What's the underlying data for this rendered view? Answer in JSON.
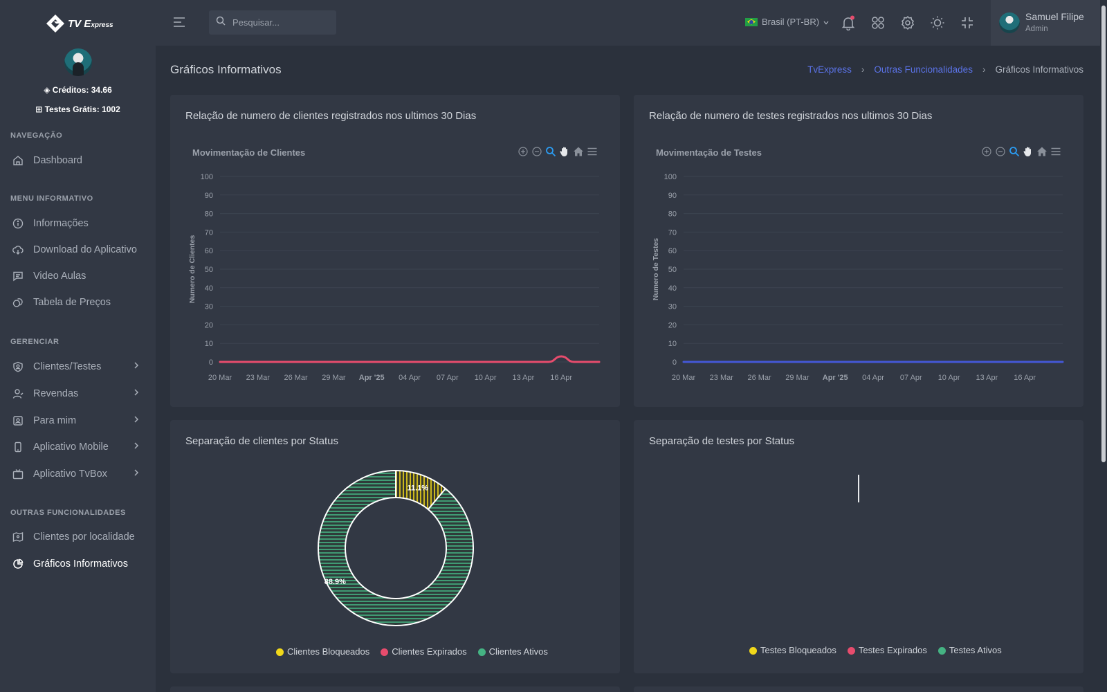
{
  "brand": {
    "logo_main": "TV E",
    "logo_small": "xpress"
  },
  "sidebar": {
    "credits": "Créditos: 34.66",
    "trials": "Testes Grátis: 1002",
    "sections": [
      {
        "header": "NAVEGAÇÃO"
      },
      {
        "header": "MENU INFORMATIVO"
      },
      {
        "header": "GERENCIAR"
      },
      {
        "header": "OUTRAS FUNCIONALIDADES"
      }
    ],
    "items": [
      {
        "label": "Dashboard",
        "icon": "home-icon"
      },
      {
        "label": "Informações",
        "icon": "info-icon"
      },
      {
        "label": "Download do Aplicativo",
        "icon": "download-cloud-icon"
      },
      {
        "label": "Video Aulas",
        "icon": "message-icon"
      },
      {
        "label": "Tabela de Preços",
        "icon": "coins-icon"
      },
      {
        "label": "Clientes/Testes",
        "icon": "shield-user-icon"
      },
      {
        "label": "Revendas",
        "icon": "user-icon"
      },
      {
        "label": "Para mim",
        "icon": "contact-icon"
      },
      {
        "label": "Aplicativo Mobile",
        "icon": "smartphone-icon"
      },
      {
        "label": "Aplicativo TvBox",
        "icon": "tv-icon"
      },
      {
        "label": "Clientes por localidade",
        "icon": "map-icon"
      },
      {
        "label": "Gráficos Informativos",
        "icon": "pie-chart-icon"
      }
    ]
  },
  "topbar": {
    "search_placeholder": "Pesquisar...",
    "language": "Brasil (PT-BR)",
    "user_name": "Samuel Filipe",
    "user_role": "Admin"
  },
  "page": {
    "title": "Gráficos Informativos",
    "breadcrumb": [
      "TvExpress",
      "Outras Funcionalidades",
      "Gráficos Informativos"
    ]
  },
  "cards": {
    "clients_line_title": "Relação de numero de clientes registrados nos ultimos 30 Dias",
    "tests_line_title": "Relação de numero de testes registrados nos ultimos 30 Dias",
    "clients_donut_title": "Separação de clientes por Status",
    "tests_donut_title": "Separação de testes por Status"
  },
  "colors": {
    "accent": "#5b73e8",
    "pink": "#e74c6d",
    "blue": "#4458d6",
    "yellow": "#f1d81a",
    "green": "#45b383",
    "card": "#323844",
    "background": "#2b313c"
  },
  "chart_data": [
    {
      "type": "line",
      "title": "Movimentação de Clientes",
      "ylabel": "Numero de Clientes",
      "ylim": [
        0,
        100
      ],
      "yticks": [
        0,
        10,
        20,
        30,
        40,
        50,
        60,
        70,
        80,
        90,
        100
      ],
      "xticks": [
        "20 Mar",
        "23 Mar",
        "26 Mar",
        "29 Mar",
        "Apr '25",
        "04 Apr",
        "07 Apr",
        "10 Apr",
        "13 Apr",
        "16 Apr"
      ],
      "x": [
        "20 Mar",
        "21 Mar",
        "22 Mar",
        "23 Mar",
        "24 Mar",
        "25 Mar",
        "26 Mar",
        "27 Mar",
        "28 Mar",
        "29 Mar",
        "30 Mar",
        "31 Mar",
        "01 Apr",
        "02 Apr",
        "03 Apr",
        "04 Apr",
        "05 Apr",
        "06 Apr",
        "07 Apr",
        "08 Apr",
        "09 Apr",
        "10 Apr",
        "11 Apr",
        "12 Apr",
        "13 Apr",
        "14 Apr",
        "15 Apr",
        "16 Apr",
        "17 Apr",
        "18 Apr",
        "19 Apr"
      ],
      "series": [
        {
          "color": "#e74c6d",
          "values": [
            0,
            0,
            0,
            0,
            0,
            0,
            0,
            0,
            0,
            0,
            0,
            0,
            0,
            0,
            0,
            0,
            0,
            0,
            0,
            0,
            0,
            0,
            0,
            0,
            0,
            0,
            0,
            3,
            0,
            0,
            0
          ]
        }
      ],
      "grid": true
    },
    {
      "type": "line",
      "title": "Movimentação de Testes",
      "ylabel": "Numero de Testes",
      "ylim": [
        0,
        100
      ],
      "yticks": [
        0,
        10,
        20,
        30,
        40,
        50,
        60,
        70,
        80,
        90,
        100
      ],
      "xticks": [
        "20 Mar",
        "23 Mar",
        "26 Mar",
        "29 Mar",
        "Apr '25",
        "04 Apr",
        "07 Apr",
        "10 Apr",
        "13 Apr",
        "16 Apr"
      ],
      "x": [
        "20 Mar",
        "21 Mar",
        "22 Mar",
        "23 Mar",
        "24 Mar",
        "25 Mar",
        "26 Mar",
        "27 Mar",
        "28 Mar",
        "29 Mar",
        "30 Mar",
        "31 Mar",
        "01 Apr",
        "02 Apr",
        "03 Apr",
        "04 Apr",
        "05 Apr",
        "06 Apr",
        "07 Apr",
        "08 Apr",
        "09 Apr",
        "10 Apr",
        "11 Apr",
        "12 Apr",
        "13 Apr",
        "14 Apr",
        "15 Apr",
        "16 Apr",
        "17 Apr",
        "18 Apr",
        "19 Apr"
      ],
      "series": [
        {
          "color": "#4458d6",
          "values": [
            0,
            0,
            0,
            0,
            0,
            0,
            0,
            0,
            0,
            0,
            0,
            0,
            0,
            0,
            0,
            0,
            0,
            0,
            0,
            0,
            0,
            0,
            0,
            0,
            0,
            0,
            0,
            0,
            0,
            0,
            0
          ]
        }
      ],
      "grid": true
    },
    {
      "type": "pie",
      "categories": [
        "Clientes Bloqueados",
        "Clientes Expirados",
        "Clientes Ativos"
      ],
      "values": [
        11.1,
        0,
        88.9
      ],
      "labels": [
        "11.1%",
        "",
        "88.9%"
      ],
      "colors": [
        "#f1d81a",
        "#e74c6d",
        "#45b383"
      ],
      "legend": "bottom"
    },
    {
      "type": "pie",
      "categories": [
        "Testes Bloqueados",
        "Testes Expirados",
        "Testes Ativos"
      ],
      "values": [
        0,
        0,
        0
      ],
      "colors": [
        "#f1d81a",
        "#e74c6d",
        "#45b383"
      ],
      "legend": "bottom"
    }
  ]
}
